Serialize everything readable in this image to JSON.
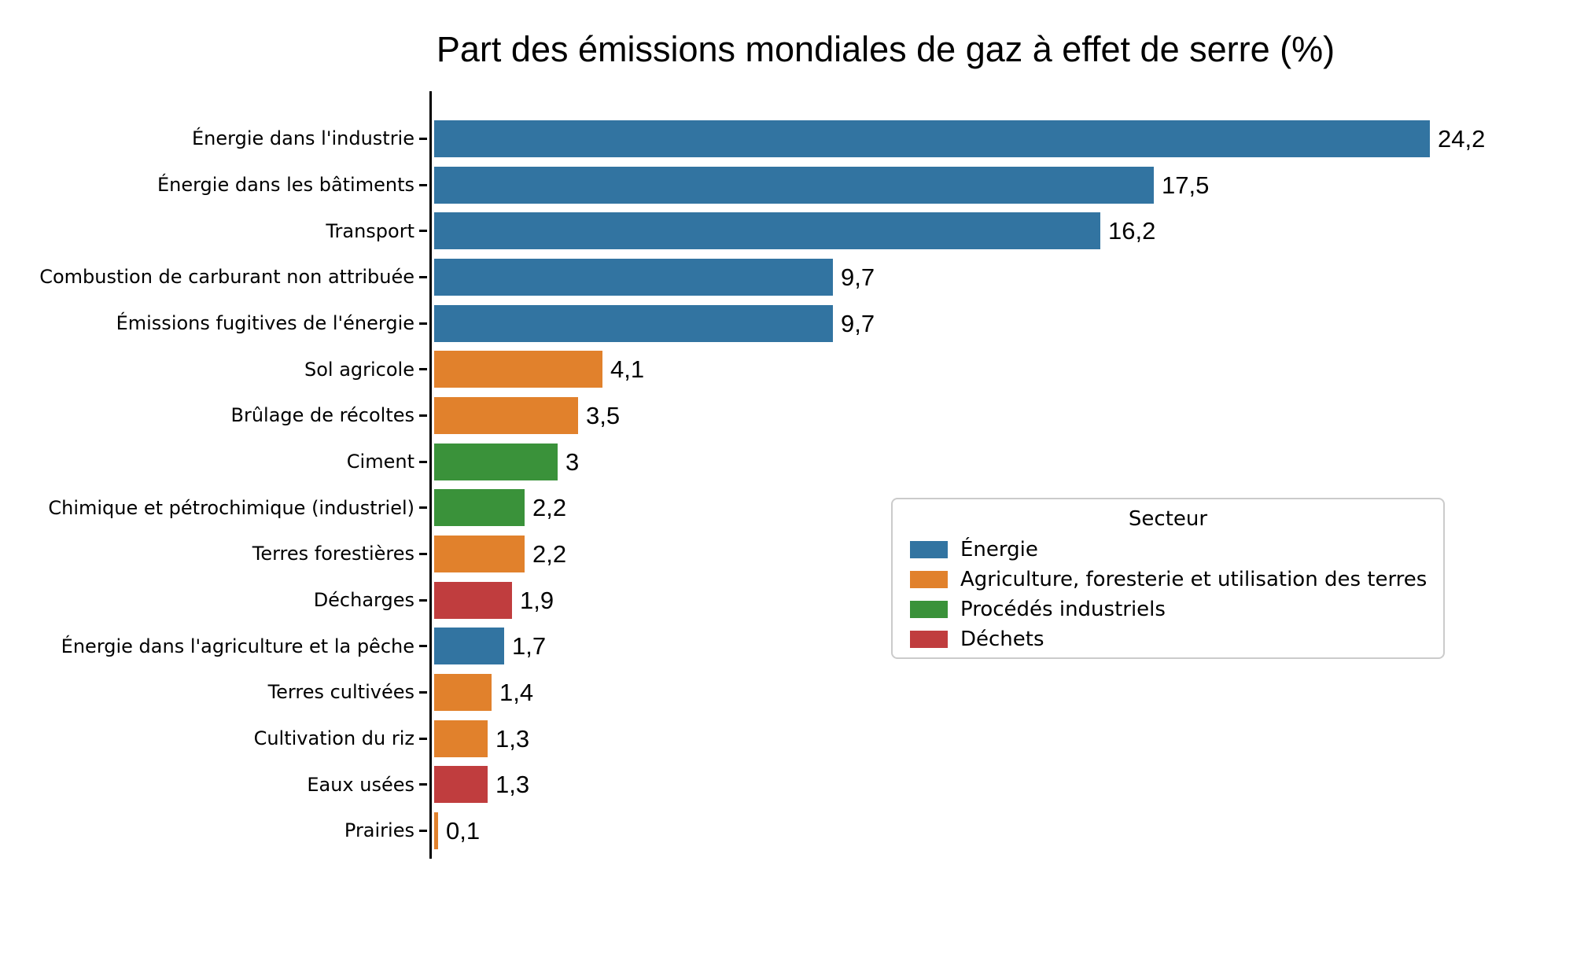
{
  "chart_data": {
    "type": "bar",
    "orientation": "horizontal",
    "title": "Part des émissions mondiales de gaz à effet de serre (%)",
    "xlabel": "",
    "ylabel": "",
    "xlim": [
      0,
      25
    ],
    "grid": false,
    "axis_color": "#000000",
    "background_color": "#ffffff",
    "categories": [
      "Énergie dans l'industrie",
      "Énergie dans les bâtiments",
      "Transport",
      "Combustion de carburant non attribuée",
      "Émissions fugitives de l'énergie",
      "Sol agricole",
      "Brûlage de récoltes",
      "Ciment",
      "Chimique et pétrochimique (industriel)",
      "Terres forestières",
      "Décharges",
      "Énergie dans l'agriculture et la pêche",
      "Terres cultivées",
      "Cultivation du riz",
      "Eaux usées",
      "Prairies"
    ],
    "values": [
      24.2,
      17.5,
      16.2,
      9.7,
      9.7,
      4.1,
      3.5,
      3,
      2.2,
      2.2,
      1.9,
      1.7,
      1.4,
      1.3,
      1.3,
      0.1
    ],
    "value_labels": [
      "24,2",
      "17,5",
      "16,2",
      "9,7",
      "9,7",
      "4,1",
      "3,5",
      "3",
      "2,2",
      "2,2",
      "1,9",
      "1,7",
      "1,4",
      "1,3",
      "1,3",
      "0,1"
    ],
    "bar_sectors": [
      "Énergie",
      "Énergie",
      "Énergie",
      "Énergie",
      "Énergie",
      "Agriculture, foresterie et utilisation des terres",
      "Agriculture, foresterie et utilisation des terres",
      "Procédés industriels",
      "Procédés industriels",
      "Agriculture, foresterie et utilisation des terres",
      "Déchets",
      "Énergie",
      "Agriculture, foresterie et utilisation des terres",
      "Agriculture, foresterie et utilisation des terres",
      "Déchets",
      "Agriculture, foresterie et utilisation des terres"
    ],
    "sector_colors": {
      "Énergie": "#3274A1",
      "Agriculture, foresterie et utilisation des terres": "#E1812C",
      "Procédés industriels": "#3A923A",
      "Déchets": "#C03D3E"
    },
    "legend": {
      "title": "Secteur",
      "position": "center right",
      "entries": [
        {
          "label": "Énergie",
          "color": "#3274A1"
        },
        {
          "label": "Agriculture, foresterie et utilisation des terres",
          "color": "#E1812C"
        },
        {
          "label": "Procédés industriels",
          "color": "#3A923A"
        },
        {
          "label": "Déchets",
          "color": "#C03D3E"
        }
      ]
    }
  }
}
